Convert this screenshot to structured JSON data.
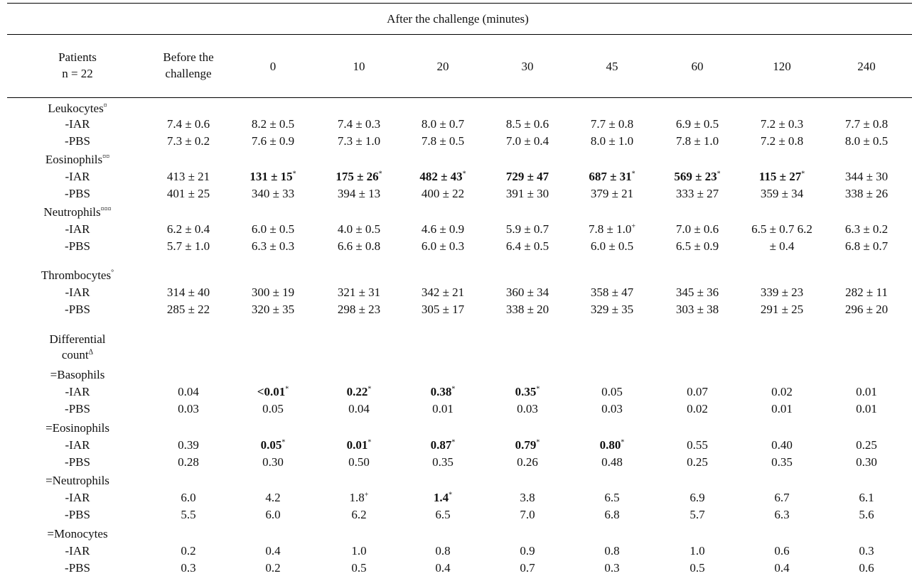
{
  "table": {
    "super_header": "After the challenge (minutes)",
    "patients_label": [
      "Patients",
      "n = 22"
    ],
    "before_label": [
      "Before the",
      "challenge"
    ],
    "time_columns": [
      "0",
      "10",
      "20",
      "30",
      "45",
      "60",
      "120",
      "240"
    ],
    "groups": [
      {
        "title": "Leukocytes",
        "sup": "¤",
        "rows": [
          {
            "label": "-IAR",
            "cells": [
              {
                "t": "7.4 ± 0.6"
              },
              {
                "t": "8.2 ± 0.5"
              },
              {
                "t": "7.4 ± 0.3"
              },
              {
                "t": "8.0 ± 0.7"
              },
              {
                "t": "8.5 ± 0.6"
              },
              {
                "t": "7.7 ± 0.8"
              },
              {
                "t": "6.9 ± 0.5"
              },
              {
                "t": "7.2 ± 0.3"
              },
              {
                "t": "7.7 ± 0.8"
              }
            ]
          },
          {
            "label": "-PBS",
            "cells": [
              {
                "t": "7.3 ± 0.2"
              },
              {
                "t": "7.6 ± 0.9"
              },
              {
                "t": "7.3 ± 1.0"
              },
              {
                "t": "7.8 ± 0.5"
              },
              {
                "t": "7.0 ± 0.4"
              },
              {
                "t": "8.0 ± 1.0"
              },
              {
                "t": "7.8 ± 1.0"
              },
              {
                "t": "7.2 ± 0.8"
              },
              {
                "t": "8.0 ± 0.5"
              }
            ]
          }
        ]
      },
      {
        "title": "Eosinophils",
        "sup": "¤¤",
        "rows": [
          {
            "label": "-IAR",
            "cells": [
              {
                "t": "413 ± 21"
              },
              {
                "t": "131 ± 15",
                "b": true,
                "s": "*"
              },
              {
                "t": "175 ± 26",
                "b": true,
                "s": "*"
              },
              {
                "t": "482 ± 43",
                "b": true,
                "s": "*"
              },
              {
                "t": "729 ± 47",
                "b": true
              },
              {
                "t": "687 ± 31",
                "b": true,
                "s": "*"
              },
              {
                "t": "569 ± 23",
                "b": true,
                "s": "*"
              },
              {
                "t": "115 ± 27",
                "b": true,
                "s": "*"
              },
              {
                "t": "344 ± 30"
              }
            ]
          },
          {
            "label": "-PBS",
            "cells": [
              {
                "t": "401 ± 25"
              },
              {
                "t": "340 ± 33"
              },
              {
                "t": "394 ± 13"
              },
              {
                "t": "400 ± 22"
              },
              {
                "t": "391 ± 30"
              },
              {
                "t": "379 ± 21"
              },
              {
                "t": "333 ± 27"
              },
              {
                "t": "359 ± 34"
              },
              {
                "t": "338 ± 26"
              }
            ]
          }
        ]
      },
      {
        "title": "Neutrophils",
        "sup": "¤¤¤",
        "rows": [
          {
            "label": "-IAR",
            "cells": [
              {
                "t": "6.2 ± 0.4"
              },
              {
                "t": "6.0 ± 0.5"
              },
              {
                "t": "4.0 ± 0.5"
              },
              {
                "t": "4.6 ± 0.9"
              },
              {
                "t": "5.9 ± 0.7"
              },
              {
                "t": "7.8 ± 1.0",
                "s": "+"
              },
              {
                "t": "7.0 ± 0.6"
              },
              {
                "t": "6.5 ± 0.7 6.2"
              },
              {
                "t": "6.3 ± 0.2"
              }
            ]
          },
          {
            "label": "-PBS",
            "cells": [
              {
                "t": "5.7 ± 1.0"
              },
              {
                "t": "6.3 ± 0.3"
              },
              {
                "t": "6.6 ± 0.8"
              },
              {
                "t": "6.0 ± 0.3"
              },
              {
                "t": "6.4 ± 0.5"
              },
              {
                "t": "6.0 ± 0.5"
              },
              {
                "t": "6.5 ± 0.9"
              },
              {
                "t": "± 0.4"
              },
              {
                "t": "6.8 ± 0.7"
              }
            ]
          }
        ]
      },
      {
        "title": "Thrombocytes",
        "sup": "°",
        "rows": [
          {
            "label": "-IAR",
            "cells": [
              {
                "t": "314 ± 40"
              },
              {
                "t": "300 ± 19"
              },
              {
                "t": "321 ± 31"
              },
              {
                "t": "342 ± 21"
              },
              {
                "t": "360 ± 34"
              },
              {
                "t": "358 ± 47"
              },
              {
                "t": "345 ± 36"
              },
              {
                "t": "339 ± 23"
              },
              {
                "t": "282 ± 11"
              }
            ]
          },
          {
            "label": "-PBS",
            "cells": [
              {
                "t": "285 ± 22"
              },
              {
                "t": "320 ± 35"
              },
              {
                "t": "298 ± 23"
              },
              {
                "t": "305 ± 17"
              },
              {
                "t": "338 ± 20"
              },
              {
                "t": "329 ± 35"
              },
              {
                "t": "303 ± 38"
              },
              {
                "t": "291 ± 25"
              },
              {
                "t": "296 ± 20"
              }
            ]
          }
        ]
      }
    ],
    "differential": {
      "title": [
        "Differential",
        "count"
      ],
      "sup": "Δ",
      "subgroups": [
        {
          "title": "=Basophils",
          "rows": [
            {
              "label": "-IAR",
              "cells": [
                {
                  "t": "0.04"
                },
                {
                  "t": "<0.01",
                  "b": true,
                  "s": "*"
                },
                {
                  "t": "0.22",
                  "b": true,
                  "s": "*"
                },
                {
                  "t": "0.38",
                  "b": true,
                  "s": "*"
                },
                {
                  "t": "0.35",
                  "b": true,
                  "s": "*"
                },
                {
                  "t": "0.05"
                },
                {
                  "t": "0.07"
                },
                {
                  "t": "0.02"
                },
                {
                  "t": "0.01"
                }
              ]
            },
            {
              "label": "-PBS",
              "cells": [
                {
                  "t": "0.03"
                },
                {
                  "t": "0.05"
                },
                {
                  "t": "0.04"
                },
                {
                  "t": "0.01"
                },
                {
                  "t": "0.03"
                },
                {
                  "t": "0.03"
                },
                {
                  "t": "0.02"
                },
                {
                  "t": "0.01"
                },
                {
                  "t": "0.01"
                }
              ]
            }
          ]
        },
        {
          "title": "=Eosinophils",
          "rows": [
            {
              "label": "-IAR",
              "cells": [
                {
                  "t": "0.39"
                },
                {
                  "t": "0.05",
                  "b": true,
                  "s": "*"
                },
                {
                  "t": "0.01",
                  "b": true,
                  "s": "*"
                },
                {
                  "t": "0.87",
                  "b": true,
                  "s": "*"
                },
                {
                  "t": "0.79",
                  "b": true,
                  "s": "*"
                },
                {
                  "t": "0.80",
                  "b": true,
                  "s": "*"
                },
                {
                  "t": "0.55"
                },
                {
                  "t": "0.40"
                },
                {
                  "t": "0.25"
                }
              ]
            },
            {
              "label": "-PBS",
              "cells": [
                {
                  "t": "0.28"
                },
                {
                  "t": "0.30"
                },
                {
                  "t": "0.50"
                },
                {
                  "t": "0.35"
                },
                {
                  "t": "0.26"
                },
                {
                  "t": "0.48"
                },
                {
                  "t": "0.25"
                },
                {
                  "t": "0.35"
                },
                {
                  "t": "0.30"
                }
              ]
            }
          ]
        },
        {
          "title": "=Neutrophils",
          "rows": [
            {
              "label": "-IAR",
              "cells": [
                {
                  "t": "6.0"
                },
                {
                  "t": "4.2"
                },
                {
                  "t": "1.8",
                  "s": "+"
                },
                {
                  "t": "1.4",
                  "b": true,
                  "s": "*"
                },
                {
                  "t": "3.8"
                },
                {
                  "t": "6.5"
                },
                {
                  "t": "6.9"
                },
                {
                  "t": "6.7"
                },
                {
                  "t": "6.1"
                }
              ]
            },
            {
              "label": "-PBS",
              "cells": [
                {
                  "t": "5.5"
                },
                {
                  "t": "6.0"
                },
                {
                  "t": "6.2"
                },
                {
                  "t": "6.5"
                },
                {
                  "t": "7.0"
                },
                {
                  "t": "6.8"
                },
                {
                  "t": "5.7"
                },
                {
                  "t": "6.3"
                },
                {
                  "t": "5.6"
                }
              ]
            }
          ]
        },
        {
          "title": "=Monocytes",
          "rows": [
            {
              "label": "-IAR",
              "cells": [
                {
                  "t": "0.2"
                },
                {
                  "t": "0.4"
                },
                {
                  "t": "1.0"
                },
                {
                  "t": "0.8"
                },
                {
                  "t": "0.9"
                },
                {
                  "t": "0.8"
                },
                {
                  "t": "1.0"
                },
                {
                  "t": "0.6"
                },
                {
                  "t": "0.3"
                }
              ]
            },
            {
              "label": "-PBS",
              "cells": [
                {
                  "t": "0.3"
                },
                {
                  "t": "0.2"
                },
                {
                  "t": "0.5"
                },
                {
                  "t": "0.4"
                },
                {
                  "t": "0.7"
                },
                {
                  "t": "0.3"
                },
                {
                  "t": "0.5"
                },
                {
                  "t": "0.4"
                },
                {
                  "t": "0.6"
                }
              ]
            }
          ]
        }
      ]
    }
  }
}
